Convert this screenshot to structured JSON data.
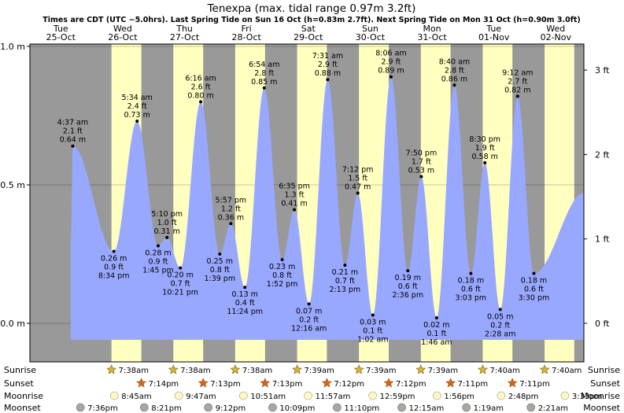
{
  "chart_data": {
    "type": "area",
    "title": "Tenexpa (max. tidal range 0.97m 3.2ft)",
    "subtitle": "Times are CDT (UTC −5.0hrs). Last Spring Tide on Sun 16 Oct (h=0.83m 2.7ft). Next Spring Tide on Mon 31 Oct (h=0.90m 3.0ft)",
    "ylabel": "",
    "xlabel": "",
    "ylim_m": [
      -0.12,
      1.0
    ],
    "y_ticks_m": [
      {
        "v": 0.0,
        "label": "0.0 m"
      },
      {
        "v": 0.5,
        "label": "0.5 m"
      },
      {
        "v": 1.0,
        "label": "1.0 m"
      }
    ],
    "y_ticks_ft": [
      {
        "v": 0,
        "label": "0 ft"
      },
      {
        "v": 1,
        "label": "1 ft"
      },
      {
        "v": 2,
        "label": "2 ft"
      },
      {
        "v": 3,
        "label": "3 ft"
      }
    ],
    "days": [
      {
        "dow": "Tue",
        "date": "25-Oct"
      },
      {
        "dow": "Wed",
        "date": "26-Oct"
      },
      {
        "dow": "Thu",
        "date": "27-Oct"
      },
      {
        "dow": "Fri",
        "date": "28-Oct"
      },
      {
        "dow": "Sat",
        "date": "29-Oct"
      },
      {
        "dow": "Sun",
        "date": "30-Oct"
      },
      {
        "dow": "Mon",
        "date": "31-Oct"
      },
      {
        "dow": "Tue",
        "date": "01-Nov"
      },
      {
        "dow": "Wed",
        "date": "02-Nov"
      }
    ],
    "daylight": [
      {
        "sunrise": "2022-10-26 07:38",
        "sunset": "2022-10-26 19:14"
      },
      {
        "sunrise": "2022-10-27 07:38",
        "sunset": "2022-10-27 19:13"
      },
      {
        "sunrise": "2022-10-28 07:38",
        "sunset": "2022-10-28 19:13"
      },
      {
        "sunrise": "2022-10-29 07:39",
        "sunset": "2022-10-29 19:12"
      },
      {
        "sunrise": "2022-10-30 07:39",
        "sunset": "2022-10-30 19:12"
      },
      {
        "sunrise": "2022-10-31 07:39",
        "sunset": "2022-10-31 19:11"
      },
      {
        "sunrise": "2022-11-01 07:40",
        "sunset": "2022-11-01 19:11"
      },
      {
        "sunrise": "2022-11-02 07:40",
        "sunset": "2022-11-02 19:10"
      }
    ],
    "tides": [
      {
        "time": "2022-10-25 16:37",
        "label": "4:37 am",
        "ft": "2.1 ft",
        "m": 0.64,
        "type": "high"
      },
      {
        "time": "2022-10-26 08:34",
        "label": "8:34 pm",
        "ft": "0.9 ft",
        "m": 0.26,
        "type": "low"
      },
      {
        "time": "2022-10-26 17:34",
        "label": "5:34 am",
        "ft": "2.4 ft",
        "m": 0.73,
        "type": "high"
      },
      {
        "time": "2022-10-27 01:45",
        "label": "1:45 pm",
        "ft": "0.9 ft",
        "m": 0.28,
        "type": "low"
      },
      {
        "time": "2022-10-27 05:10",
        "label": "5:10 pm",
        "ft": "1.0 ft",
        "m": 0.31,
        "type": "high"
      },
      {
        "time": "2022-10-27 10:21",
        "label": "10:21 pm",
        "ft": "0.7 ft",
        "m": 0.2,
        "type": "low"
      },
      {
        "time": "2022-10-27 18:16",
        "label": "6:16 am",
        "ft": "2.6 ft",
        "m": 0.8,
        "type": "high"
      },
      {
        "time": "2022-10-28 01:39",
        "label": "1:39 pm",
        "ft": "0.8 ft",
        "m": 0.25,
        "type": "low"
      },
      {
        "time": "2022-10-28 05:57",
        "label": "5:57 pm",
        "ft": "1.2 ft",
        "m": 0.36,
        "type": "high"
      },
      {
        "time": "2022-10-28 11:24",
        "label": "11:24 pm",
        "ft": "0.4 ft",
        "m": 0.13,
        "type": "low"
      },
      {
        "time": "2022-10-28 18:54",
        "label": "6:54 am",
        "ft": "2.8 ft",
        "m": 0.85,
        "type": "high"
      },
      {
        "time": "2022-10-29 01:52",
        "label": "1:52 pm",
        "ft": "0.8 ft",
        "m": 0.23,
        "type": "low"
      },
      {
        "time": "2022-10-29 06:35",
        "label": "6:35 pm",
        "ft": "1.3 ft",
        "m": 0.41,
        "type": "high"
      },
      {
        "time": "2022-10-29 12:16",
        "label": "12:16 am",
        "ft": "0.2 ft",
        "m": 0.07,
        "type": "low"
      },
      {
        "time": "2022-10-29 19:31",
        "label": "7:31 am",
        "ft": "2.9 ft",
        "m": 0.88,
        "type": "high"
      },
      {
        "time": "2022-10-30 02:13",
        "label": "2:13 pm",
        "ft": "0.7 ft",
        "m": 0.21,
        "type": "low"
      },
      {
        "time": "2022-10-30 07:12",
        "label": "7:12 pm",
        "ft": "1.5 ft",
        "m": 0.47,
        "type": "high"
      },
      {
        "time": "2022-10-30 13:02",
        "label": "1:02 am",
        "ft": "0.1 ft",
        "m": 0.03,
        "type": "low"
      },
      {
        "time": "2022-10-30 20:06",
        "label": "8:06 am",
        "ft": "2.9 ft",
        "m": 0.89,
        "type": "high"
      },
      {
        "time": "2022-10-31 02:36",
        "label": "2:36 pm",
        "ft": "0.6 ft",
        "m": 0.19,
        "type": "low"
      },
      {
        "time": "2022-10-31 07:50",
        "label": "7:50 pm",
        "ft": "1.7 ft",
        "m": 0.53,
        "type": "high"
      },
      {
        "time": "2022-10-31 13:46",
        "label": "1:46 am",
        "ft": "0.1 ft",
        "m": 0.02,
        "type": "low"
      },
      {
        "time": "2022-10-31 20:40",
        "label": "8:40 am",
        "ft": "2.8 ft",
        "m": 0.86,
        "type": "high"
      },
      {
        "time": "2022-11-01 03:03",
        "label": "3:03 pm",
        "ft": "0.6 ft",
        "m": 0.18,
        "type": "low"
      },
      {
        "time": "2022-11-01 08:30",
        "label": "8:30 pm",
        "ft": "1.9 ft",
        "m": 0.58,
        "type": "high"
      },
      {
        "time": "2022-11-01 14:28",
        "label": "2:28 am",
        "ft": "0.2 ft",
        "m": 0.05,
        "type": "low"
      },
      {
        "time": "2022-11-01 21:12",
        "label": "9:12 am",
        "ft": "2.7 ft",
        "m": 0.82,
        "type": "high"
      },
      {
        "time": "2022-11-02 03:30",
        "label": "3:30 pm",
        "ft": "0.6 ft",
        "m": 0.18,
        "type": "low"
      }
    ],
    "astro_rows": [
      {
        "label": "Sunrise",
        "icon": "sunrise-star-icon",
        "items": [
          {
            "time": "2022-10-26 07:38",
            "text": "7:38am"
          },
          {
            "time": "2022-10-27 07:38",
            "text": "7:38am"
          },
          {
            "time": "2022-10-28 07:38",
            "text": "7:38am"
          },
          {
            "time": "2022-10-29 07:39",
            "text": "7:39am"
          },
          {
            "time": "2022-10-30 07:39",
            "text": "7:39am"
          },
          {
            "time": "2022-10-31 07:39",
            "text": "7:39am"
          },
          {
            "time": "2022-11-01 07:40",
            "text": "7:40am"
          },
          {
            "time": "2022-11-02 07:40",
            "text": "7:40am"
          }
        ]
      },
      {
        "label": "Sunset",
        "icon": "sunset-star-icon",
        "items": [
          {
            "time": "2022-10-26 19:14",
            "text": "7:14pm"
          },
          {
            "time": "2022-10-27 19:13",
            "text": "7:13pm"
          },
          {
            "time": "2022-10-28 19:13",
            "text": "7:13pm"
          },
          {
            "time": "2022-10-29 19:12",
            "text": "7:12pm"
          },
          {
            "time": "2022-10-30 19:12",
            "text": "7:12pm"
          },
          {
            "time": "2022-10-31 19:11",
            "text": "7:11pm"
          },
          {
            "time": "2022-11-01 19:11",
            "text": "7:11pm"
          }
        ]
      },
      {
        "label": "Moonrise",
        "icon": "moonrise-circle-icon",
        "items": [
          {
            "time": "2022-10-26 08:45",
            "text": "8:45am"
          },
          {
            "time": "2022-10-27 09:47",
            "text": "9:47am"
          },
          {
            "time": "2022-10-28 10:51",
            "text": "10:51am"
          },
          {
            "time": "2022-10-29 11:57",
            "text": "11:57am"
          },
          {
            "time": "2022-10-30 12:59",
            "text": "12:59pm"
          },
          {
            "time": "2022-10-31 13:56",
            "text": "1:56pm"
          },
          {
            "time": "2022-11-01 14:48",
            "text": "2:48pm"
          },
          {
            "time": "2022-11-02 15:33",
            "text": "3:33pm"
          }
        ]
      },
      {
        "label": "Moonset",
        "icon": "moonset-circle-icon",
        "items": [
          {
            "time": "2022-10-25 19:36",
            "text": "7:36pm"
          },
          {
            "time": "2022-10-26 20:21",
            "text": "8:21pm"
          },
          {
            "time": "2022-10-27 21:12",
            "text": "9:12pm"
          },
          {
            "time": "2022-10-28 22:09",
            "text": "10:09pm"
          },
          {
            "time": "2022-10-29 23:10",
            "text": "11:10pm"
          },
          {
            "time": "2022-10-31 00:15",
            "text": "12:15am"
          },
          {
            "time": "2022-11-01 01:19",
            "text": "1:19am"
          },
          {
            "time": "2022-11-02 02:21",
            "text": "2:21am"
          }
        ]
      }
    ],
    "colors": {
      "night": "#999999",
      "day": "#ffffc0",
      "water": "#99a8ff",
      "day_text": "#ff0000",
      "sunrise_star": "#d4b43c",
      "sunset_star": "#e0601a",
      "moonrise": "#fff8c0",
      "moonset": "#a8a8a0"
    }
  }
}
